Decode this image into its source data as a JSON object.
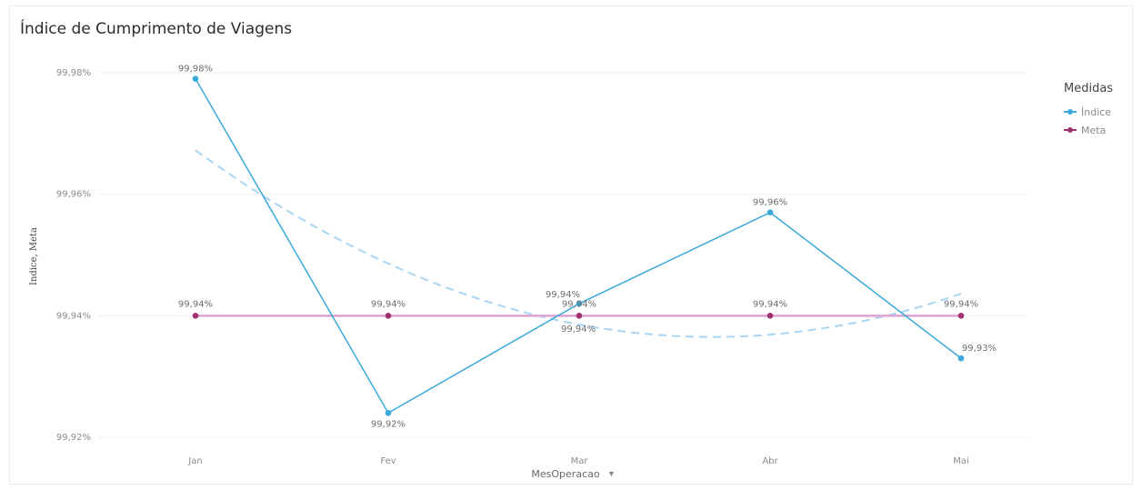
{
  "chart_data": {
    "type": "line",
    "title": "Índice de Cumprimento de Viagens",
    "xlabel": "MesOperacao",
    "ylabel": "Indice, Meta",
    "categories": [
      "Jan",
      "Fev",
      "Mar",
      "Abr",
      "Mai"
    ],
    "yticks": [
      "99,98%",
      "99,96%",
      "99,94%",
      "99,92%"
    ],
    "ytick_values": [
      99.98,
      99.96,
      99.94,
      99.92
    ],
    "ylim": [
      99.92,
      99.98
    ],
    "grid": true,
    "legend_title": "Medidas",
    "legend_position": "top-right",
    "series": [
      {
        "name": "Índice",
        "color": "#3aa8d8",
        "values": [
          99.979,
          99.924,
          99.942,
          99.957,
          99.933
        ],
        "labels": [
          "99,98%",
          "99,92%",
          "99,94%",
          "99,96%",
          "99,93%"
        ]
      },
      {
        "name": "Meta",
        "color": "#a0336f",
        "line_color": "#dca3d2",
        "values": [
          99.94,
          99.94,
          99.94,
          99.94,
          99.94
        ],
        "labels": [
          "99,94%",
          "99,94%",
          "99,94%",
          "99,94%",
          "99,94%"
        ]
      }
    ],
    "trend": {
      "series": "Índice",
      "style": "dashed",
      "color": "#a9d4f2",
      "label": "99,94%"
    }
  }
}
